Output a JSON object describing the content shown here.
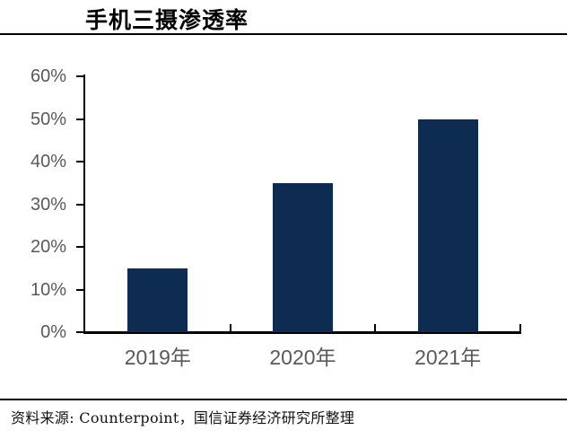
{
  "title": "手机三摄渗透率",
  "source_note": "资料来源: Counterpoint，国信证券经济研究所整理",
  "colors": {
    "background": "#FFFFFF",
    "bar": "#0E2B52",
    "axis": "#000000",
    "axis_label": "#595959",
    "title_text": "#000000",
    "rule": "#000000"
  },
  "chart_data": {
    "type": "bar",
    "title": "手机三摄渗透率",
    "categories": [
      "2019年",
      "2020年",
      "2021年"
    ],
    "values": [
      15,
      35,
      50
    ],
    "value_unit": "%",
    "xlabel": "",
    "ylabel": "",
    "ylim": [
      0,
      60
    ],
    "ytick_step": 10,
    "ytick_labels": [
      "0%",
      "10%",
      "20%",
      "30%",
      "40%",
      "50%",
      "60%"
    ],
    "grid": false,
    "legend_position": "none"
  }
}
